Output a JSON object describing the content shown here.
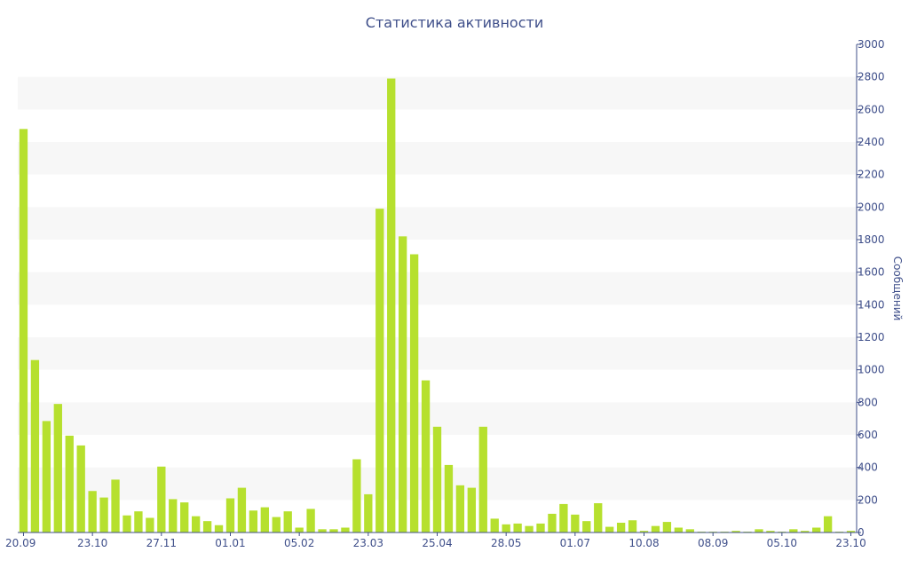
{
  "chart_data": {
    "type": "bar",
    "title": "Статистика активности",
    "ylabel": "Сообщений",
    "xlabel": "",
    "ylim": [
      0,
      3000
    ],
    "yticks": [
      0,
      200,
      400,
      600,
      800,
      1000,
      1200,
      1400,
      1600,
      1800,
      2000,
      2200,
      2400,
      2600,
      2800,
      3000
    ],
    "y_axis_side": "right",
    "grid": "alternating horizontal bands",
    "x_tick_labels": [
      {
        "index": 0,
        "label": "20.09"
      },
      {
        "index": 6,
        "label": "23.10"
      },
      {
        "index": 12,
        "label": "27.11"
      },
      {
        "index": 18,
        "label": "01.01"
      },
      {
        "index": 24,
        "label": "05.02"
      },
      {
        "index": 30,
        "label": "23.03"
      },
      {
        "index": 36,
        "label": "25.04"
      },
      {
        "index": 42,
        "label": "28.05"
      },
      {
        "index": 48,
        "label": "01.07"
      },
      {
        "index": 54,
        "label": "10.08"
      },
      {
        "index": 60,
        "label": "08.09"
      },
      {
        "index": 66,
        "label": "05.10"
      },
      {
        "index": 72,
        "label": "23.10"
      }
    ],
    "values": [
      2480,
      1060,
      685,
      790,
      595,
      535,
      255,
      215,
      325,
      105,
      130,
      90,
      405,
      205,
      185,
      100,
      70,
      45,
      210,
      275,
      135,
      155,
      95,
      130,
      30,
      145,
      20,
      20,
      30,
      450,
      235,
      1990,
      2790,
      1820,
      1710,
      935,
      650,
      415,
      290,
      275,
      650,
      85,
      50,
      55,
      40,
      55,
      115,
      175,
      110,
      70,
      180,
      35,
      60,
      75,
      10,
      40,
      65,
      30,
      20,
      5,
      5,
      5,
      10,
      5,
      20,
      10,
      5,
      20,
      10,
      30,
      100,
      5,
      10
    ],
    "colors": {
      "bar": "#b6e02e",
      "axis": "#3f4f8a",
      "band": "#f7f7f7"
    }
  }
}
